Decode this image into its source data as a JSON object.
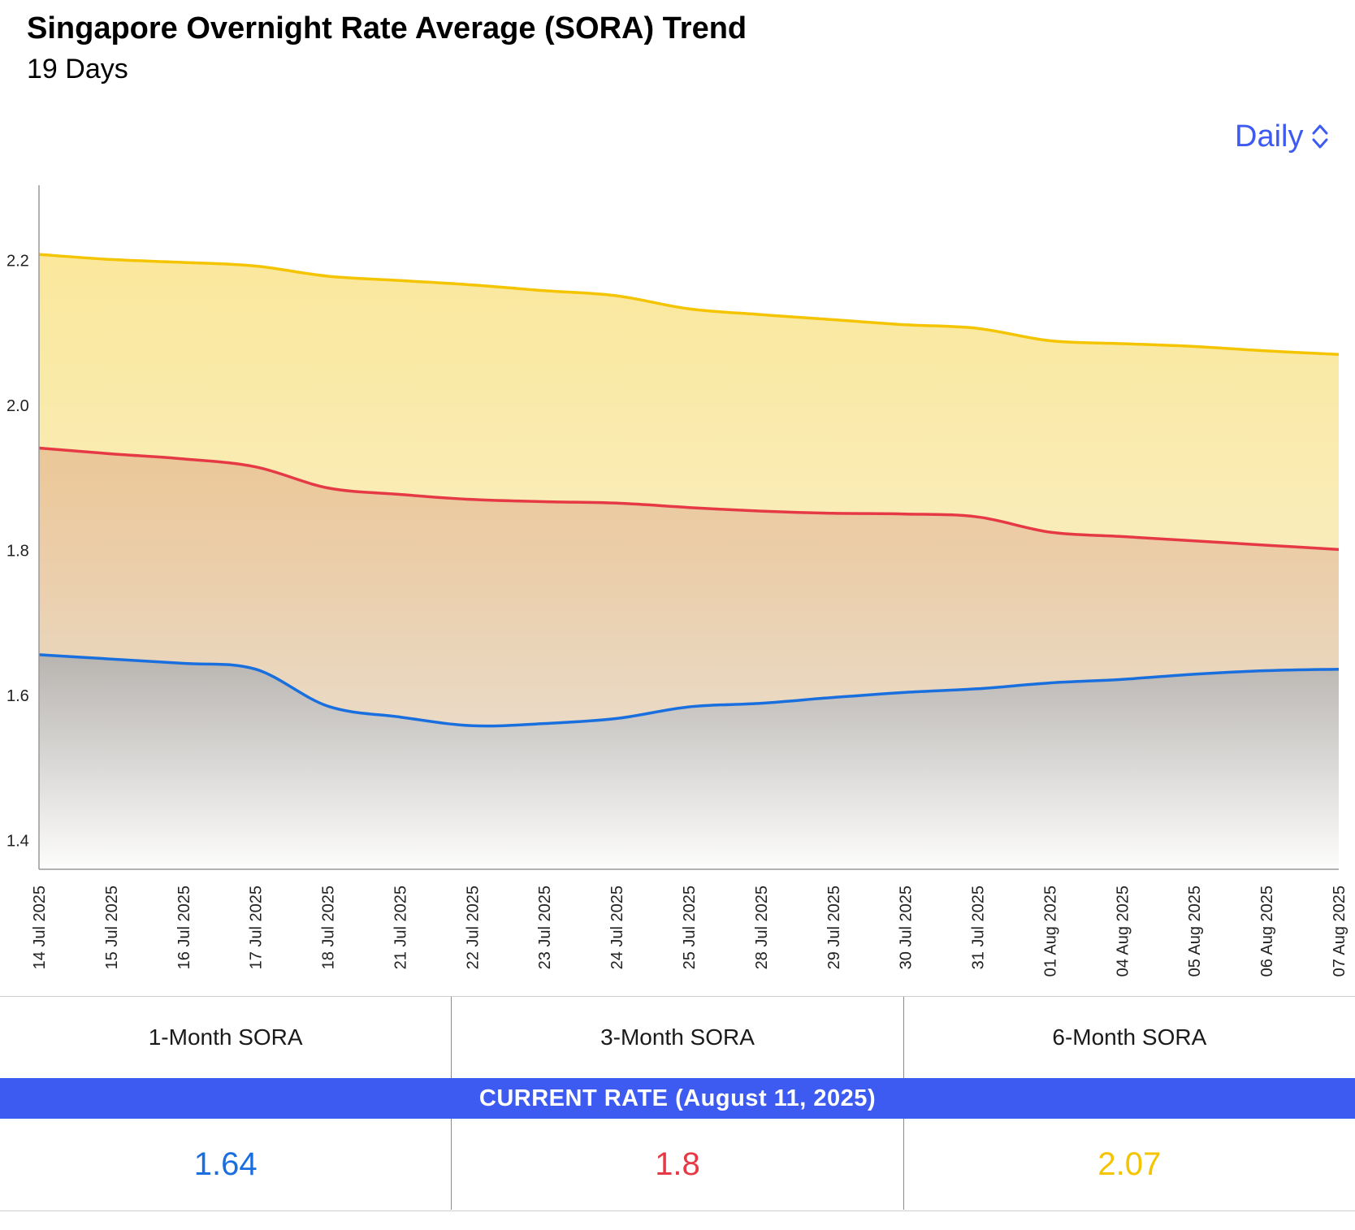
{
  "header": {
    "title": "Singapore Overnight Rate Average (SORA) Trend",
    "subtitle": "19 Days"
  },
  "period_selector": {
    "label": "Daily",
    "icon": "chevron-up-down-icon",
    "color": "#3d5af1"
  },
  "chart_data": {
    "type": "area",
    "categories": [
      "14 Jul 2025",
      "15 Jul 2025",
      "16 Jul 2025",
      "17 Jul 2025",
      "18 Jul 2025",
      "21 Jul 2025",
      "22 Jul 2025",
      "23 Jul 2025",
      "24 Jul 2025",
      "25 Jul 2025",
      "28 Jul 2025",
      "29 Jul 2025",
      "30 Jul 2025",
      "31 Jul 2025",
      "01 Aug 2025",
      "04 Aug 2025",
      "05 Aug 2025",
      "06 Aug 2025",
      "07 Aug 2025"
    ],
    "series": [
      {
        "color": "#f5c400",
        "values": [
          2.208,
          2.201,
          2.197,
          2.192,
          2.178,
          2.172,
          2.166,
          2.158,
          2.151,
          2.133,
          2.125,
          2.118,
          2.111,
          2.106,
          2.089,
          2.085,
          2.081,
          2.075,
          2.07
        ]
      },
      {
        "color": "#e63946",
        "values": [
          1.941,
          1.933,
          1.926,
          1.915,
          1.886,
          1.877,
          1.87,
          1.867,
          1.865,
          1.859,
          1.854,
          1.851,
          1.85,
          1.846,
          1.825,
          1.819,
          1.813,
          1.807,
          1.801
        ]
      },
      {
        "color": "#1a6fdf",
        "values": [
          1.656,
          1.65,
          1.644,
          1.636,
          1.585,
          1.57,
          1.558,
          1.561,
          1.568,
          1.584,
          1.589,
          1.597,
          1.604,
          1.609,
          1.617,
          1.622,
          1.629,
          1.634,
          1.636
        ]
      }
    ],
    "y_ticks": [
      1.4,
      1.6,
      1.8,
      2.0,
      2.2
    ],
    "ylim": [
      1.36,
      2.29
    ],
    "grid": false,
    "legend": "none"
  },
  "table": {
    "headers": [
      "1-Month SORA",
      "3-Month SORA",
      "6-Month SORA"
    ],
    "banner": "CURRENT RATE (August 11, 2025)",
    "values": [
      "1.64",
      "1.8",
      "2.07"
    ],
    "value_colors": [
      "#1a6fdf",
      "#e63946",
      "#f5c400"
    ],
    "banner_color": "#3d5af1"
  }
}
